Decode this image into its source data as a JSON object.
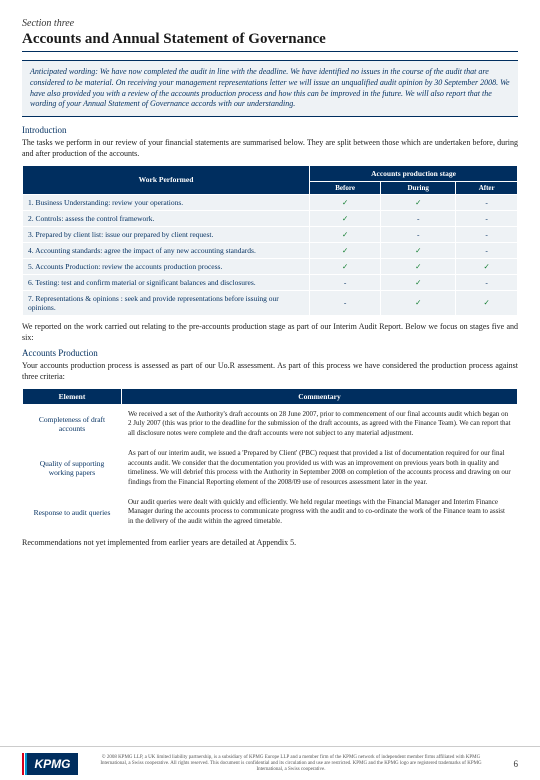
{
  "section_label": "Section three",
  "section_title": "Accounts and Annual Statement of Governance",
  "anticipated": "Anticipated wording: We have now completed the audit in line with the deadline.  We have identified no issues in the course of the audit that are considered to be material.  On receiving your management representations letter we will issue an unqualified audit opinion by 30 September 2008.  We have also provided you with a review of the accounts production process and how this can be improved in the future.  We will also report that the wording of your Annual Statement of Governance accords with our understanding.",
  "intro_head": "Introduction",
  "intro_text": "The tasks we perform in our review of your financial statements are summarised below. They are split between those which are undertaken before, during and after production of the accounts.",
  "table1": {
    "wp_header": "Work Performed",
    "stage_header": "Accounts production stage",
    "cols": [
      "Before",
      "During",
      "After"
    ],
    "rows": [
      {
        "label": "1. Business Understanding: review your operations.",
        "v": [
          "✓",
          "✓",
          "-"
        ]
      },
      {
        "label": "2. Controls: assess the control framework.",
        "v": [
          "✓",
          "-",
          "-"
        ]
      },
      {
        "label": "3. Prepared by client list: issue our prepared by client request.",
        "v": [
          "✓",
          "-",
          "-"
        ]
      },
      {
        "label": "4. Accounting standards: agree the impact of any new accounting standards.",
        "v": [
          "✓",
          "✓",
          "-"
        ]
      },
      {
        "label": "5. Accounts Production: review the accounts production process.",
        "v": [
          "✓",
          "✓",
          "✓"
        ]
      },
      {
        "label": "6. Testing: test and confirm material or significant balances and disclosures.",
        "v": [
          "-",
          "✓",
          "-"
        ]
      },
      {
        "label": "7. Representations & opinions : seek and provide representations before issuing our opinions.",
        "v": [
          "-",
          "✓",
          "✓"
        ]
      }
    ]
  },
  "mid_text": "We reported on the work carried out relating to the pre-accounts production stage as part of our Interim Audit Report. Below we focus on stages five and six:",
  "ap_head": "Accounts Production",
  "ap_text": "Your accounts production process is assessed as part of our Uo.R assessment.  As part of this process we have considered the production process against three criteria:",
  "table2": {
    "headers": [
      "Element",
      "Commentary"
    ],
    "rows": [
      {
        "el": "Completeness of draft accounts",
        "cm": "We received a set of the Authority's draft accounts on 28 June 2007, prior to commencement of our final accounts audit which began on 2 July 2007 (this was prior to the deadline for the submission of the draft accounts, as agreed with the Finance Team).  We can report that all disclosure notes were complete and the draft accounts were not subject to any material adjustment."
      },
      {
        "el": "Quality of supporting working papers",
        "cm": "As part of our interim audit, we issued a 'Prepared by Client' (PBC) request that provided a list of documentation required for our final accounts audit. We consider that the documentation you provided us with was an improvement on previous years both in quality and timeliness.\nWe will debrief this process with the Authority in September 2008 on completion of the accounts process and drawing on our findings from the Financial Reporting element of the 2008/09 use of resources assessment later in the year."
      },
      {
        "el": "Response to audit queries",
        "cm": "Our audit queries were dealt with quickly and efficiently. We held regular meetings with the Financial Manager and Interim Finance Manager during the accounts process to communicate progress with the audit and to co-ordinate the work of the Finance team to assist in the delivery of the audit within the agreed timetable."
      }
    ]
  },
  "rec_text": "Recommendations not yet implemented from earlier years are detailed at Appendix 5.",
  "footer": {
    "logo": "KPMG",
    "copyright": "© 2008 KPMG LLP, a UK limited liability partnership, is a subsidiary of KPMG Europe LLP and a member firm of the KPMG network of independent member firms affiliated with KPMG International, a Swiss cooperative. All rights reserved. This document is confidential and its circulation and use are restricted. KPMG and the KPMG logo are registered trademarks of KPMG International, a Swiss cooperative.",
    "page": "6"
  }
}
